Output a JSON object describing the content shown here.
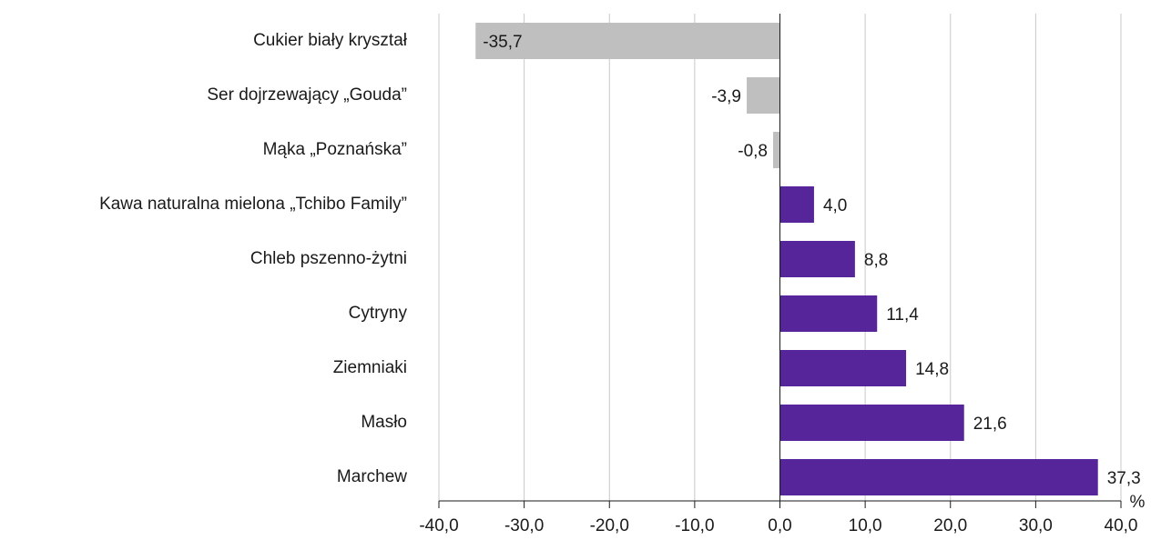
{
  "chart_data": {
    "type": "barh",
    "categories": [
      "Cukier biały kryształ",
      "Ser dojrzewający „Gouda”",
      "Mąka „Poznańska”",
      "Kawa naturalna mielona „Tchibo Family”",
      "Chleb pszenno-żytni",
      "Cytryny",
      "Ziemniaki",
      "Masło",
      "Marchew"
    ],
    "values": [
      -35.7,
      -3.9,
      -0.8,
      4.0,
      8.8,
      11.4,
      14.8,
      21.6,
      37.3
    ],
    "value_labels": [
      "-35,7",
      "-3,9",
      "-0,8",
      "4,0",
      "8,8",
      "11,4",
      "14,8",
      "21,6",
      "37,3"
    ],
    "colors": [
      "#bfbfbf",
      "#bfbfbf",
      "#bfbfbf",
      "#56259a",
      "#56259a",
      "#56259a",
      "#56259a",
      "#56259a",
      "#56259a"
    ],
    "xlabel": "%",
    "xlim": [
      -40,
      40
    ],
    "xticks": [
      {
        "value": -40,
        "label": "-40,0"
      },
      {
        "value": -30,
        "label": "-30,0"
      },
      {
        "value": -20,
        "label": "-20,0"
      },
      {
        "value": -10,
        "label": "-10,0"
      },
      {
        "value": 0,
        "label": "0,0"
      },
      {
        "value": 10,
        "label": "10,0"
      },
      {
        "value": 20,
        "label": "20,0"
      },
      {
        "value": 30,
        "label": "30,0"
      },
      {
        "value": 40,
        "label": "40,0"
      }
    ],
    "grid": true
  }
}
